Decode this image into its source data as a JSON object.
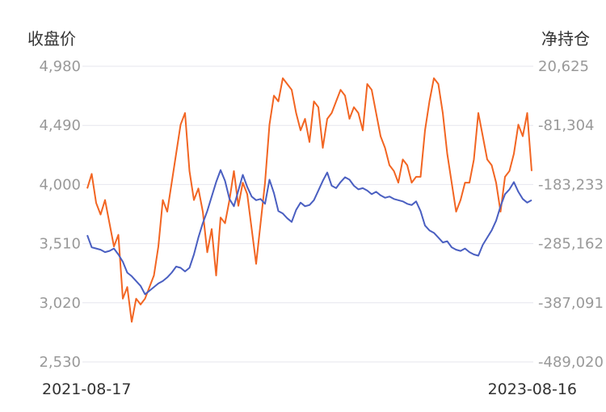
{
  "chart_data": {
    "type": "line",
    "title": "",
    "left_axis": {
      "label": "收盘价",
      "ylim": [
        2530,
        4980
      ],
      "ticks": [
        "4,980",
        "4,490",
        "4,000",
        "3,510",
        "3,020",
        "2,530"
      ]
    },
    "right_axis": {
      "label": "净持仓",
      "ylim": [
        -489020,
        20625
      ],
      "ticks": [
        "20,625",
        "-81,304",
        "-183,233",
        "-285,162",
        "-387,091",
        "-489,020"
      ]
    },
    "x_labels": {
      "start": "2021-08-17",
      "end": "2023-08-16"
    },
    "grid": true,
    "series": [
      {
        "axis": "left",
        "color": "#4a5fc1",
        "x": [
          0,
          0.01,
          0.02,
          0.03,
          0.04,
          0.05,
          0.06,
          0.07,
          0.08,
          0.09,
          0.1,
          0.11,
          0.12,
          0.13,
          0.14,
          0.15,
          0.16,
          0.17,
          0.18,
          0.19,
          0.2,
          0.21,
          0.22,
          0.23,
          0.24,
          0.25,
          0.26,
          0.27,
          0.28,
          0.29,
          0.3,
          0.31,
          0.32,
          0.33,
          0.34,
          0.35,
          0.36,
          0.37,
          0.38,
          0.39,
          0.4,
          0.41,
          0.42,
          0.43,
          0.44,
          0.45,
          0.46,
          0.47,
          0.48,
          0.49,
          0.5,
          0.51,
          0.52,
          0.53,
          0.54,
          0.55,
          0.56,
          0.57,
          0.58,
          0.59,
          0.6,
          0.61,
          0.62,
          0.63,
          0.64,
          0.65,
          0.66,
          0.67,
          0.68,
          0.69,
          0.7,
          0.71,
          0.72,
          0.73,
          0.74,
          0.75,
          0.76,
          0.77,
          0.78,
          0.79,
          0.8,
          0.81,
          0.82,
          0.83,
          0.84,
          0.85,
          0.86,
          0.87,
          0.88,
          0.89,
          0.9,
          0.91,
          0.92,
          0.93,
          0.94,
          0.95,
          0.96,
          0.97,
          0.98,
          0.99,
          1
        ],
        "values": [
          3580,
          3480,
          3470,
          3460,
          3440,
          3450,
          3470,
          3420,
          3360,
          3270,
          3240,
          3200,
          3160,
          3090,
          3120,
          3150,
          3180,
          3200,
          3230,
          3270,
          3320,
          3310,
          3280,
          3310,
          3420,
          3560,
          3680,
          3780,
          3900,
          4020,
          4120,
          4030,
          3880,
          3820,
          3950,
          4080,
          3980,
          3900,
          3870,
          3880,
          3840,
          4040,
          3930,
          3780,
          3760,
          3720,
          3690,
          3790,
          3850,
          3820,
          3830,
          3870,
          3950,
          4030,
          4100,
          3990,
          3970,
          4020,
          4060,
          4040,
          3990,
          3960,
          3970,
          3950,
          3920,
          3940,
          3910,
          3890,
          3900,
          3880,
          3870,
          3860,
          3840,
          3830,
          3860,
          3780,
          3660,
          3620,
          3600,
          3560,
          3520,
          3530,
          3480,
          3460,
          3450,
          3470,
          3440,
          3420,
          3410,
          3500,
          3560,
          3620,
          3700,
          3820,
          3920,
          3960,
          4020,
          3940,
          3880,
          3850,
          3870
        ]
      },
      {
        "axis": "right",
        "color": "#f26522",
        "x": [
          0,
          0.01,
          0.02,
          0.03,
          0.04,
          0.05,
          0.06,
          0.07,
          0.08,
          0.09,
          0.1,
          0.11,
          0.12,
          0.13,
          0.14,
          0.15,
          0.16,
          0.17,
          0.18,
          0.19,
          0.2,
          0.21,
          0.22,
          0.23,
          0.24,
          0.25,
          0.26,
          0.27,
          0.28,
          0.29,
          0.3,
          0.31,
          0.32,
          0.33,
          0.34,
          0.35,
          0.36,
          0.37,
          0.38,
          0.39,
          0.4,
          0.41,
          0.42,
          0.43,
          0.44,
          0.45,
          0.46,
          0.47,
          0.48,
          0.49,
          0.5,
          0.51,
          0.52,
          0.53,
          0.54,
          0.55,
          0.56,
          0.57,
          0.58,
          0.59,
          0.6,
          0.61,
          0.62,
          0.63,
          0.64,
          0.65,
          0.66,
          0.67,
          0.68,
          0.69,
          0.7,
          0.71,
          0.72,
          0.73,
          0.74,
          0.75,
          0.76,
          0.77,
          0.78,
          0.79,
          0.8,
          0.81,
          0.82,
          0.83,
          0.84,
          0.85,
          0.86,
          0.87,
          0.88,
          0.89,
          0.9,
          0.91,
          0.92,
          0.93,
          0.94,
          0.95,
          0.96,
          0.97,
          0.98,
          0.99,
          1
        ],
        "values": [
          -190000,
          -165000,
          -215000,
          -235000,
          -210000,
          -250000,
          -290000,
          -270000,
          -380000,
          -360000,
          -420000,
          -380000,
          -390000,
          -380000,
          -360000,
          -340000,
          -290000,
          -210000,
          -230000,
          -180000,
          -130000,
          -80000,
          -60000,
          -160000,
          -210000,
          -190000,
          -230000,
          -300000,
          -260000,
          -340000,
          -240000,
          -250000,
          -210000,
          -160000,
          -220000,
          -180000,
          -200000,
          -260000,
          -320000,
          -250000,
          -180000,
          -80000,
          -30000,
          -40000,
          0,
          -10000,
          -20000,
          -60000,
          -90000,
          -70000,
          -110000,
          -40000,
          -50000,
          -120000,
          -70000,
          -60000,
          -40000,
          -20000,
          -30000,
          -70000,
          -50000,
          -60000,
          -90000,
          -10000,
          -20000,
          -60000,
          -100000,
          -120000,
          -150000,
          -160000,
          -180000,
          -140000,
          -150000,
          -180000,
          -170000,
          -170000,
          -90000,
          -40000,
          0,
          -10000,
          -60000,
          -130000,
          -180000,
          -230000,
          -210000,
          -180000,
          -180000,
          -140000,
          -60000,
          -100000,
          -140000,
          -150000,
          -180000,
          -230000,
          -170000,
          -160000,
          -130000,
          -80000,
          -100000,
          -60000,
          -160000
        ]
      }
    ]
  }
}
